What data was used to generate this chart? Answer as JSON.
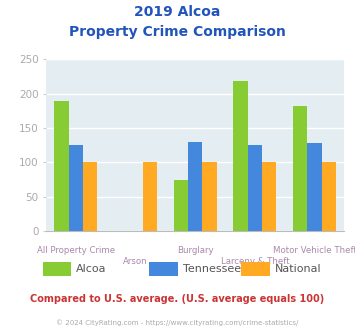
{
  "title_line1": "2019 Alcoa",
  "title_line2": "Property Crime Comparison",
  "categories": [
    "All Property Crime",
    "Arson",
    "Burglary",
    "Larceny & Theft",
    "Motor Vehicle Theft"
  ],
  "cat_labels_row1": [
    "All Property Crime",
    "",
    "Burglary",
    "",
    "Motor Vehicle Theft"
  ],
  "cat_labels_row2": [
    "",
    "Arson",
    "",
    "Larceny & Theft",
    ""
  ],
  "series": {
    "Alcoa": [
      190,
      0,
      75,
      218,
      182
    ],
    "Tennessee": [
      125,
      0,
      130,
      125,
      128
    ],
    "National": [
      100,
      100,
      100,
      100,
      100
    ]
  },
  "colors": {
    "Alcoa": "#88cc33",
    "Tennessee": "#4488dd",
    "National": "#ffaa22"
  },
  "ylim": [
    0,
    250
  ],
  "yticks": [
    0,
    50,
    100,
    150,
    200,
    250
  ],
  "plot_bg": "#e4eef2",
  "title_color": "#2255bb",
  "xlabel_color": "#aa88aa",
  "ylabel_color": "#aaaaaa",
  "footer_text": "Compared to U.S. average. (U.S. average equals 100)",
  "copyright_text": "© 2024 CityRating.com - https://www.cityrating.com/crime-statistics/",
  "footer_color": "#cc3333",
  "copyright_color": "#aaaaaa",
  "legend_label_color": "#555555"
}
